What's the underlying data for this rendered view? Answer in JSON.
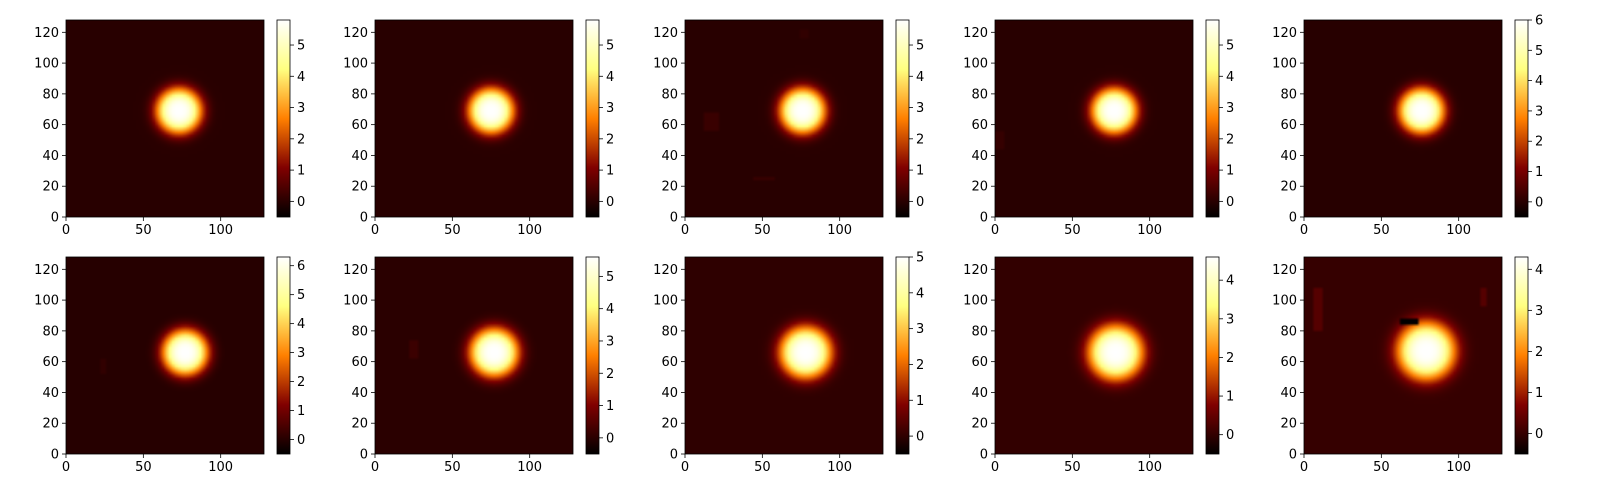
{
  "chart_data": [
    {
      "type": "heatmap",
      "colormap": "afmhot",
      "xlim": [
        0,
        128
      ],
      "ylim": [
        0,
        128
      ],
      "xticks": [
        "0",
        "50",
        "100"
      ],
      "yticks": [
        "0",
        "20",
        "40",
        "60",
        "80",
        "100",
        "120"
      ],
      "vmin": -0.5,
      "vmax": 5.8,
      "colorbar_ticks": [
        "0",
        "1",
        "2",
        "3",
        "4",
        "5"
      ],
      "blob": {
        "center": [
          73,
          69
        ],
        "radius": 15,
        "peak": 5.8
      },
      "artifacts": []
    },
    {
      "type": "heatmap",
      "colormap": "afmhot",
      "xlim": [
        0,
        128
      ],
      "ylim": [
        0,
        128
      ],
      "xticks": [
        "0",
        "50",
        "100"
      ],
      "yticks": [
        "0",
        "20",
        "40",
        "60",
        "80",
        "100",
        "120"
      ],
      "vmin": -0.5,
      "vmax": 5.8,
      "colorbar_ticks": [
        "0",
        "1",
        "2",
        "3",
        "4",
        "5"
      ],
      "blob": {
        "center": [
          75,
          69
        ],
        "radius": 15,
        "peak": 5.8
      },
      "artifacts": []
    },
    {
      "type": "heatmap",
      "colormap": "afmhot",
      "xlim": [
        0,
        128
      ],
      "ylim": [
        0,
        128
      ],
      "xticks": [
        "0",
        "50",
        "100"
      ],
      "yticks": [
        "0",
        "20",
        "40",
        "60",
        "80",
        "100",
        "120"
      ],
      "vmin": -0.5,
      "vmax": 5.8,
      "colorbar_ticks": [
        "0",
        "1",
        "2",
        "3",
        "4",
        "5"
      ],
      "blob": {
        "center": [
          76,
          69
        ],
        "radius": 15,
        "peak": 5.8
      },
      "artifacts": [
        {
          "x": [
            75,
            80
          ],
          "y": [
            117,
            122
          ],
          "value": 0.1
        },
        {
          "x": [
            12,
            22
          ],
          "y": [
            57,
            68
          ],
          "value": 0.2
        },
        {
          "x": [
            44,
            58
          ],
          "y": [
            24,
            25.5
          ],
          "value": 0.2
        }
      ]
    },
    {
      "type": "heatmap",
      "colormap": "afmhot",
      "xlim": [
        0,
        128
      ],
      "ylim": [
        0,
        128
      ],
      "xticks": [
        "0",
        "50",
        "100"
      ],
      "yticks": [
        "0",
        "20",
        "40",
        "60",
        "80",
        "100",
        "120"
      ],
      "vmin": -0.5,
      "vmax": 5.8,
      "colorbar_ticks": [
        "0",
        "1",
        "2",
        "3",
        "4",
        "5"
      ],
      "blob": {
        "center": [
          77,
          69
        ],
        "radius": 15,
        "peak": 5.8
      },
      "artifacts": [
        {
          "x": [
            1,
            6
          ],
          "y": [
            44,
            56
          ],
          "value": 0.15
        }
      ]
    },
    {
      "type": "heatmap",
      "colormap": "afmhot",
      "xlim": [
        0,
        128
      ],
      "ylim": [
        0,
        128
      ],
      "xticks": [
        "0",
        "50",
        "100"
      ],
      "yticks": [
        "0",
        "20",
        "40",
        "60",
        "80",
        "100",
        "120"
      ],
      "vmin": -0.5,
      "vmax": 6.0,
      "colorbar_ticks": [
        "0",
        "1",
        "2",
        "3",
        "4",
        "5",
        "6"
      ],
      "blob": {
        "center": [
          76,
          69
        ],
        "radius": 15,
        "peak": 6.0
      },
      "artifacts": []
    },
    {
      "type": "heatmap",
      "colormap": "afmhot",
      "xlim": [
        0,
        128
      ],
      "ylim": [
        0,
        128
      ],
      "xticks": [
        "0",
        "50",
        "100"
      ],
      "yticks": [
        "0",
        "20",
        "40",
        "60",
        "80",
        "100",
        "120"
      ],
      "vmin": -0.5,
      "vmax": 6.3,
      "colorbar_ticks": [
        "0",
        "1",
        "2",
        "3",
        "4",
        "5",
        "6"
      ],
      "blob": {
        "center": [
          77,
          66
        ],
        "radius": 15,
        "peak": 6.3
      },
      "artifacts": [
        {
          "x": [
            23,
            26
          ],
          "y": [
            53,
            62
          ],
          "value": 0.15
        }
      ]
    },
    {
      "type": "heatmap",
      "colormap": "afmhot",
      "xlim": [
        0,
        128
      ],
      "ylim": [
        0,
        128
      ],
      "xticks": [
        "0",
        "50",
        "100"
      ],
      "yticks": [
        "0",
        "20",
        "40",
        "60",
        "80",
        "100",
        "120"
      ],
      "vmin": -0.5,
      "vmax": 5.6,
      "colorbar_ticks": [
        "0",
        "1",
        "2",
        "3",
        "4",
        "5"
      ],
      "blob": {
        "center": [
          77,
          66
        ],
        "radius": 16,
        "peak": 5.6
      },
      "artifacts": [
        {
          "x": [
            23,
            27
          ],
          "y": [
            63,
            74
          ],
          "value": 0.2
        }
      ]
    },
    {
      "type": "heatmap",
      "colormap": "afmhot",
      "xlim": [
        0,
        128
      ],
      "ylim": [
        0,
        128
      ],
      "xticks": [
        "0",
        "50",
        "100"
      ],
      "yticks": [
        "0",
        "20",
        "40",
        "60",
        "80",
        "100",
        "120"
      ],
      "vmin": -0.5,
      "vmax": 5.0,
      "colorbar_ticks": [
        "0",
        "1",
        "2",
        "3",
        "4",
        "5"
      ],
      "blob": {
        "center": [
          78,
          66
        ],
        "radius": 17,
        "peak": 5.0
      },
      "artifacts": []
    },
    {
      "type": "heatmap",
      "colormap": "afmhot",
      "xlim": [
        0,
        128
      ],
      "ylim": [
        0,
        128
      ],
      "xticks": [
        "0",
        "50",
        "100"
      ],
      "yticks": [
        "0",
        "20",
        "40",
        "60",
        "80",
        "100",
        "120"
      ],
      "vmin": -0.5,
      "vmax": 4.6,
      "colorbar_ticks": [
        "0",
        "1",
        "2",
        "3",
        "4"
      ],
      "blob": {
        "center": [
          78,
          66
        ],
        "radius": 18,
        "peak": 4.6
      },
      "artifacts": []
    },
    {
      "type": "heatmap",
      "colormap": "afmhot",
      "xlim": [
        0,
        128
      ],
      "ylim": [
        0,
        128
      ],
      "xticks": [
        "0",
        "50",
        "100"
      ],
      "yticks": [
        "0",
        "20",
        "40",
        "60",
        "80",
        "100",
        "120"
      ],
      "vmin": -0.5,
      "vmax": 4.3,
      "colorbar_ticks": [
        "0",
        "1",
        "2",
        "3",
        "4"
      ],
      "blob": {
        "center": [
          79,
          67
        ],
        "radius": 19,
        "peak": 4.3
      },
      "artifacts": [
        {
          "x": [
            6,
            12
          ],
          "y": [
            81,
            107
          ],
          "value": 0.3
        },
        {
          "x": [
            114,
            117
          ],
          "y": [
            97,
            107
          ],
          "value": 0.3
        },
        {
          "x": [
            62,
            74
          ],
          "y": [
            85,
            88
          ],
          "value": -0.5
        }
      ]
    }
  ]
}
